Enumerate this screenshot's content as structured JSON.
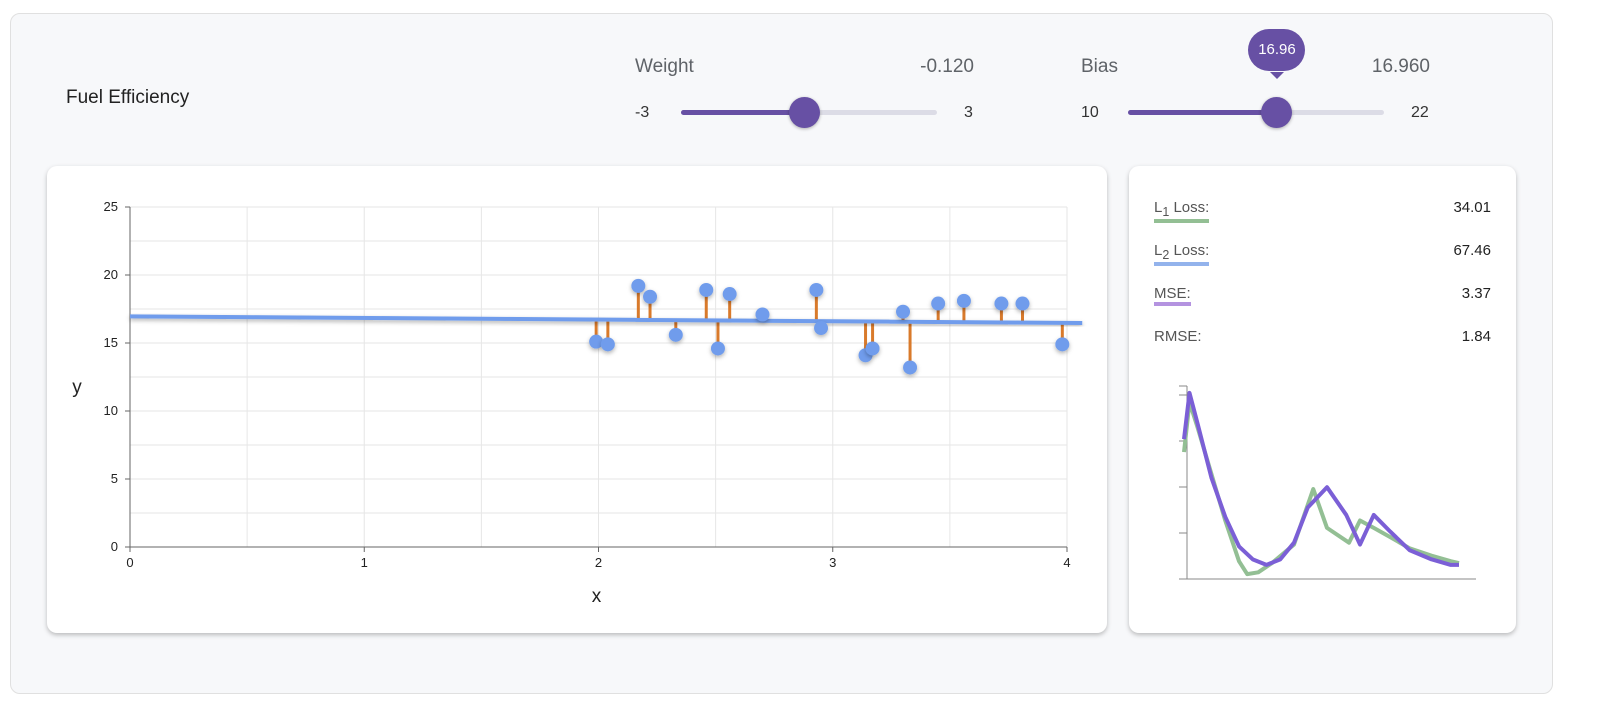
{
  "title": "Fuel Efficiency",
  "weight": {
    "label": "Weight",
    "value_text": "-0.120",
    "min": "-3",
    "max": "3",
    "value": -0.12
  },
  "bias": {
    "label": "Bias",
    "value_text": "16.960",
    "min": "10",
    "max": "22",
    "value": 16.96,
    "bubble": "16.96"
  },
  "colors": {
    "accent": "#6750a4",
    "points": "#6f9cec",
    "residual": "#d97a2b",
    "line": "#6f9cec",
    "l1": "#93bf94",
    "l2": "#93b3ec",
    "mse": "#b493e0",
    "curve_mse": "#7b5fd6"
  },
  "metrics": [
    {
      "label": "L",
      "sub": "1",
      "suffix": " Loss:",
      "value": "34.01"
    },
    {
      "label": "L",
      "sub": "2",
      "suffix": " Loss:",
      "value": "67.46"
    },
    {
      "label": "MSE:",
      "value": "3.37"
    },
    {
      "label": "RMSE:",
      "value": "1.84"
    }
  ],
  "chart_data": [
    {
      "type": "scatter",
      "xlabel": "x",
      "ylabel": "y",
      "xlim": [
        0,
        4
      ],
      "ylim": [
        0,
        25
      ],
      "xticks": [
        "0",
        "1",
        "2",
        "3",
        "4"
      ],
      "yticks": [
        "0",
        "5",
        "10",
        "15",
        "20",
        "25"
      ],
      "grid": true,
      "points": [
        [
          1.99,
          15.1
        ],
        [
          2.04,
          14.9
        ],
        [
          2.17,
          19.2
        ],
        [
          2.22,
          18.4
        ],
        [
          2.33,
          15.6
        ],
        [
          2.46,
          18.9
        ],
        [
          2.51,
          14.6
        ],
        [
          2.56,
          18.6
        ],
        [
          2.7,
          17.1
        ],
        [
          2.93,
          18.9
        ],
        [
          2.95,
          16.1
        ],
        [
          3.14,
          14.1
        ],
        [
          3.17,
          14.6
        ],
        [
          3.3,
          17.3
        ],
        [
          3.33,
          13.2
        ],
        [
          3.45,
          17.9
        ],
        [
          3.56,
          18.1
        ],
        [
          3.72,
          17.9
        ],
        [
          3.81,
          17.9
        ],
        [
          3.98,
          14.9
        ]
      ],
      "fit_line": {
        "slope": -0.12,
        "intercept": 16.96
      }
    },
    {
      "type": "line",
      "series": [
        {
          "key": "l1",
          "x": [
            0,
            2,
            5,
            10,
            15,
            20,
            23,
            27,
            32,
            40,
            47,
            52,
            60,
            64,
            69,
            75,
            82,
            90,
            97,
            100
          ],
          "y": [
            67,
            94,
            80,
            55,
            30,
            8,
            1,
            2,
            7,
            17,
            47,
            26,
            18,
            30,
            26,
            21,
            15,
            11,
            8,
            7
          ]
        },
        {
          "key": "mse",
          "x": [
            0,
            2,
            5,
            10,
            15,
            20,
            25,
            30,
            35,
            40,
            45,
            52,
            59,
            64,
            69,
            75,
            82,
            90,
            97,
            100
          ],
          "y": [
            74,
            99,
            82,
            53,
            32,
            16,
            9,
            6,
            9,
            18,
            37,
            48,
            33,
            17,
            33,
            24,
            14,
            9,
            6,
            6
          ]
        }
      ]
    }
  ]
}
